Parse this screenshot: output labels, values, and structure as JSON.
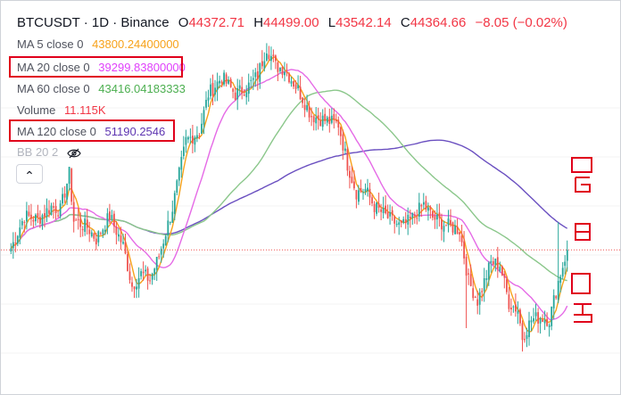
{
  "header": {
    "symbol": "BTCUSDT · 1D · Binance",
    "open_key": "O",
    "open": "44372.71",
    "high_key": "H",
    "high": "44499.00",
    "low_key": "L",
    "low": "43542.14",
    "close_key": "C",
    "close": "44364.66",
    "change": "−8.05 (−0.02%)"
  },
  "indicators": {
    "ma5": {
      "label": "MA 5 close 0",
      "value": "43800.24400000",
      "color": "#f7a21b"
    },
    "ma20": {
      "label": "MA 20 close 0",
      "value": "39299.83800000",
      "color": "#e040fb"
    },
    "ma60": {
      "label": "MA 60 close 0",
      "value": "43416.04183333",
      "color": "#4caf50"
    },
    "volume": {
      "label": "Volume",
      "value": "11.115K",
      "color": "#f23645"
    },
    "ma120": {
      "label": "MA 120 close 0",
      "value": "51190.2546",
      "color": "#5e35b1"
    },
    "bb": {
      "label": "BB 20 2",
      "icon": "eye-crossed-icon"
    }
  },
  "collapse_button": {
    "icon": "chevron-up-icon",
    "glyph": "⌃"
  },
  "colors": {
    "candle_up": "#26a69a",
    "candle_down": "#ef5350",
    "ma5": "#f7a21b",
    "ma20": "#e56ae6",
    "ma60": "#8bc78b",
    "ma120": "#6a4fc0",
    "price_line": "#ef5350",
    "highlight_box": "#e0001b"
  },
  "chart_data": {
    "type": "candlestick",
    "ylim": [
      30000,
      70000
    ],
    "last_close": 44364.66,
    "candles": [],
    "series": [
      {
        "name": "MA 5 close 0",
        "last": 43800.244
      },
      {
        "name": "MA 20 close 0",
        "last": 39299.838
      },
      {
        "name": "MA 60 close 0",
        "last": 43416.04183333
      },
      {
        "name": "MA 120 close 0",
        "last": 51190.2546
      }
    ]
  }
}
